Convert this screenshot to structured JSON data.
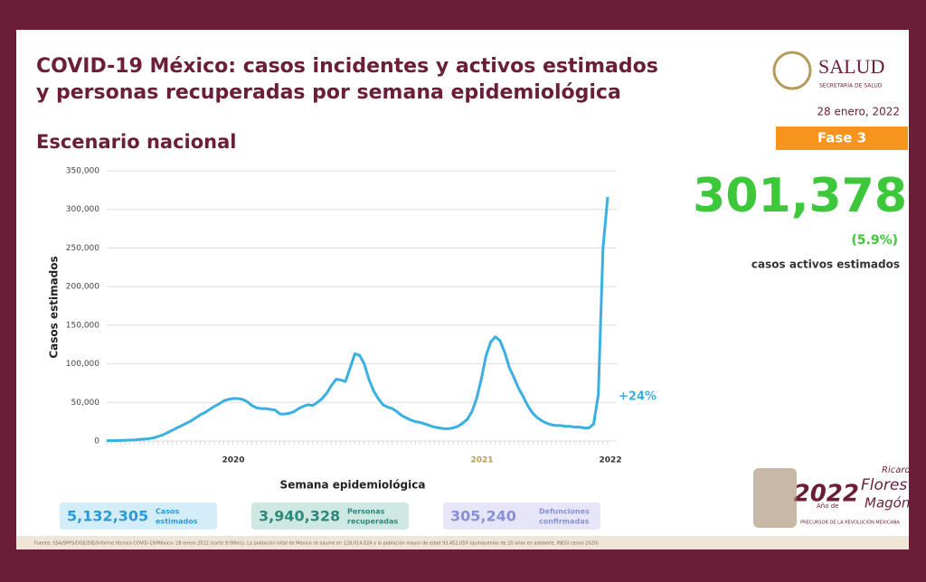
{
  "header": {
    "title_line1": "COVID-19 México: casos incidentes y activos estimados",
    "title_line2": "y personas recuperadas por semana epidemiológica",
    "subtitle": "Escenario nacional",
    "brand": "SALUD",
    "brand_sub": "SECRETARÍA DE SALUD",
    "date": "28 enero, 2022",
    "phase": "Fase 3"
  },
  "kpi": {
    "value": "301,378",
    "percent": "(5.9%)",
    "label": "casos activos estimados"
  },
  "chart_data": {
    "type": "line",
    "x_label": "Semana epidemiológica",
    "y_label": "Casos estimados",
    "annotation": "+24%",
    "year_labels": [
      "2020",
      "2021",
      "2022"
    ],
    "series": [
      {
        "name": "Casos activos estimados",
        "color": "#3ab0e2",
        "values": [
          500,
          500,
          600,
          800,
          1000,
          1200,
          1500,
          2000,
          2500,
          3000,
          4000,
          6000,
          8000,
          11000,
          14000,
          17000,
          20000,
          23000,
          26000,
          30000,
          34000,
          37000,
          41000,
          45000,
          48000,
          52000,
          54000,
          55000,
          55000,
          54000,
          51000,
          46000,
          43000,
          42000,
          42000,
          41000,
          40000,
          35000,
          35000,
          36000,
          38000,
          42000,
          45000,
          47000,
          46000,
          50000,
          55000,
          62000,
          72000,
          80000,
          79000,
          77000,
          95000,
          113000,
          111000,
          100000,
          80000,
          65000,
          55000,
          47000,
          44000,
          42000,
          38000,
          33000,
          30000,
          27000,
          25000,
          24000,
          22000,
          20000,
          18000,
          17000,
          16000,
          16000,
          17000,
          19000,
          23000,
          28000,
          38000,
          55000,
          80000,
          110000,
          128000,
          135000,
          130000,
          115000,
          95000,
          82000,
          68000,
          57000,
          45000,
          36000,
          30000,
          26000,
          23000,
          21000,
          20000,
          20000,
          19000,
          19000,
          18000,
          18000,
          17000,
          17000,
          22000,
          60000,
          250000,
          316000
        ]
      }
    ],
    "ylim": [
      0,
      350000
    ],
    "yticks": [
      0,
      {
        "value": 50000,
        "label": "50,000"
      },
      {
        "value": 100000,
        "label": "100,000"
      },
      {
        "value": 150000,
        "label": "150,000"
      },
      {
        "value": 200000,
        "label": "200,000"
      },
      {
        "value": 250000,
        "label": "250,000"
      },
      {
        "value": 300000,
        "label": "300,000"
      },
      {
        "value": 350000,
        "label": "350,000"
      }
    ],
    "grid": true
  },
  "summary": [
    {
      "value": "5,132,305",
      "label1": "Casos",
      "label2": "estimados"
    },
    {
      "value": "3,940,328",
      "label1": "Personas",
      "label2": "recuperadas"
    },
    {
      "value": "305,240",
      "label1": "Defunciones",
      "label2": "confirmadas"
    }
  ],
  "logo": {
    "year": "2022",
    "sub": "Año de",
    "name1": "Ricardo",
    "name2": "Flores",
    "name3": "Magón",
    "caption": "PRECURSOR DE LA REVOLUCIÓN MEXICANA"
  },
  "footer": "Fuente: SSA/SPPS/DGE/DIE/Informe técnico COVID-19/México- 28 enero 2022 (corte 9:00hrs). La población total de México se asume en 128,014,024 y la población mayor de edad 93,452,050 (quinquenios de 20 años en adelante, INEGI censo 2020)"
}
